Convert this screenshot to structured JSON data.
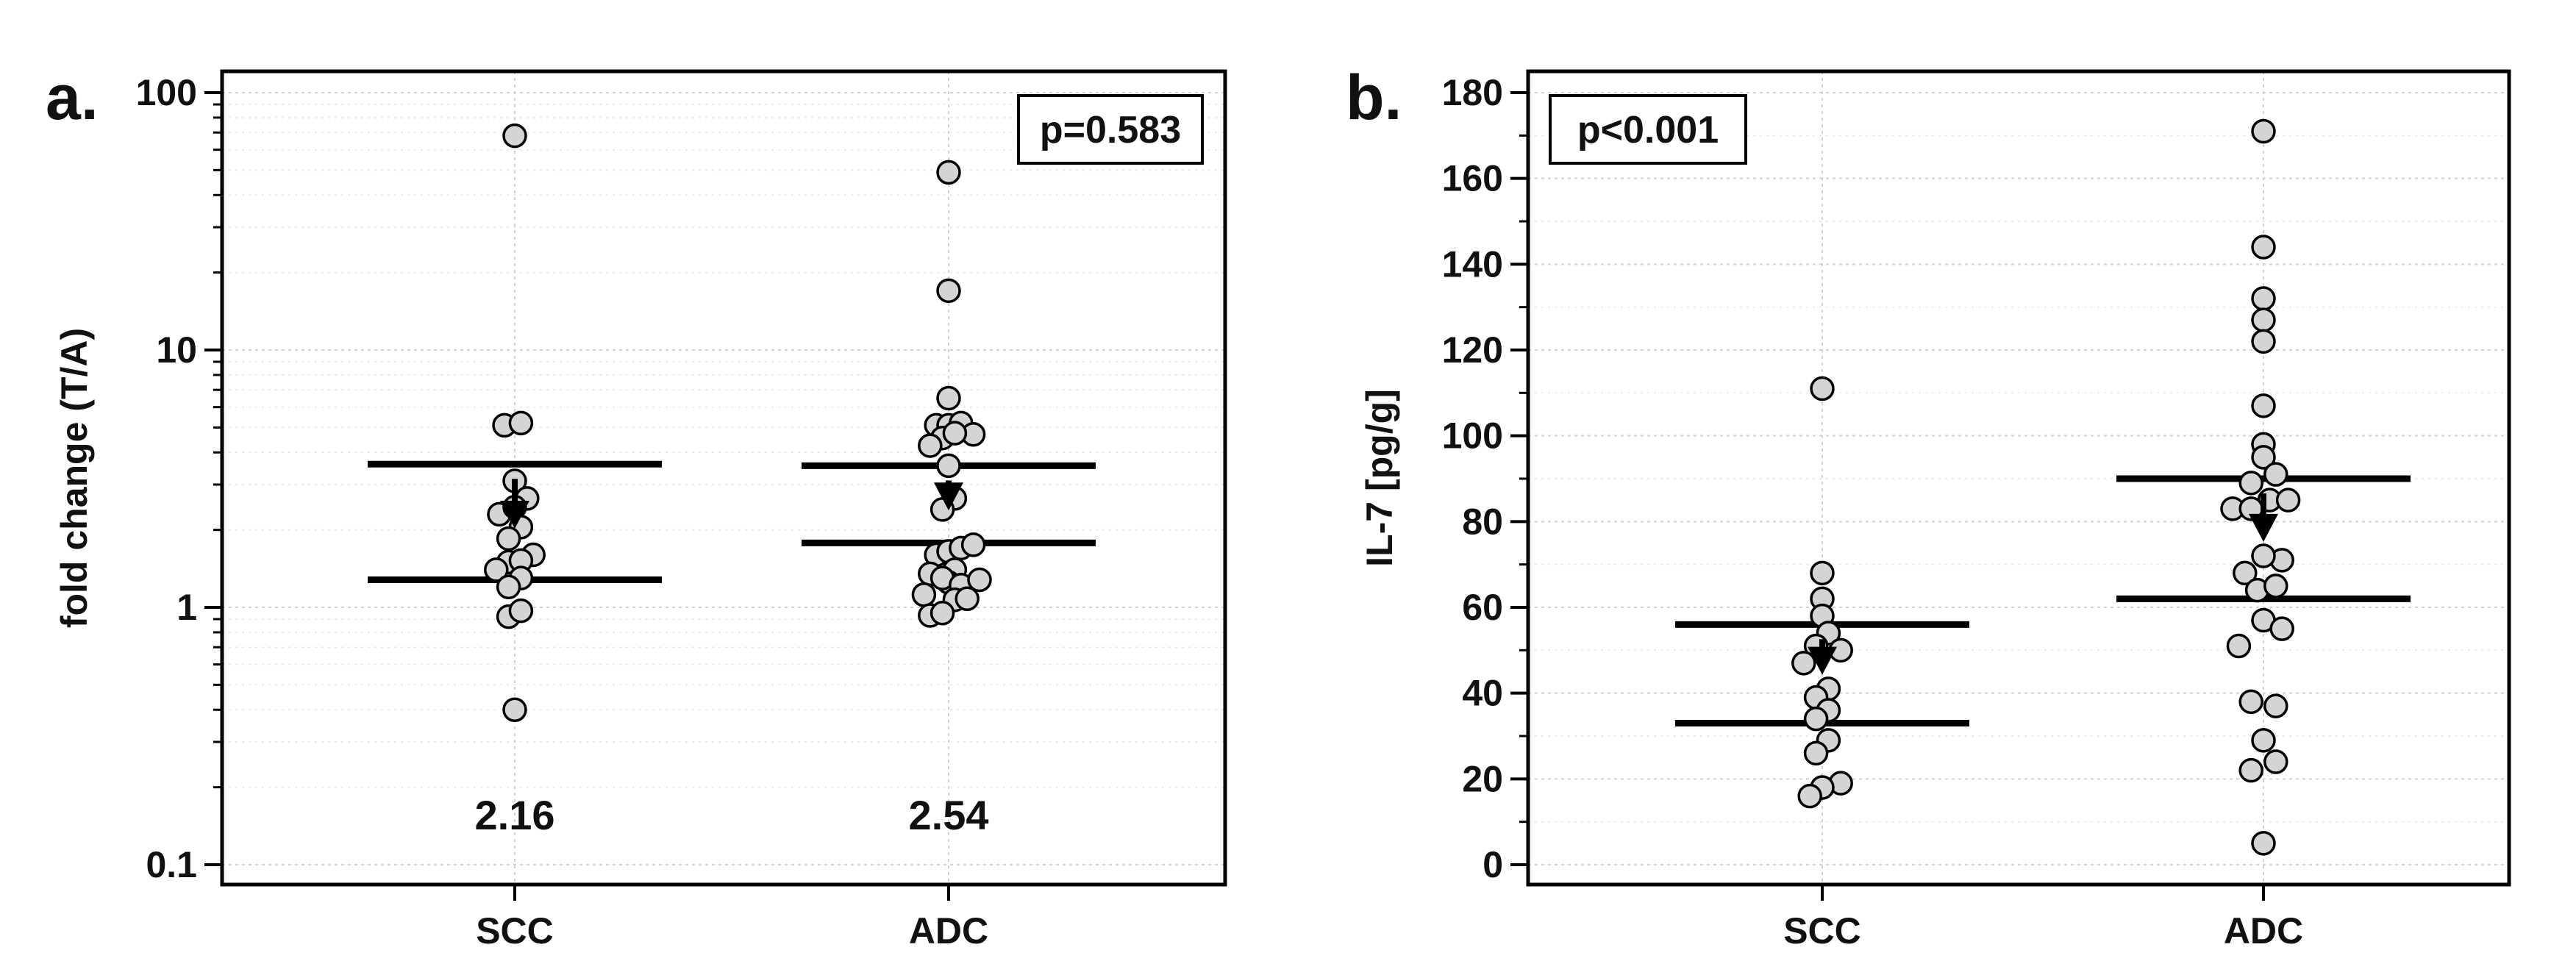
{
  "chart_data": [
    {
      "panel_label": "a.",
      "type": "scatter",
      "ylabel": "fold change (T/A)",
      "yscale": "log",
      "ylim": [
        0.08,
        120
      ],
      "yticks": [
        0.1,
        1,
        10,
        100
      ],
      "ytick_labels": [
        "0.1",
        "1",
        "10",
        "100"
      ],
      "categories": [
        "SCC",
        "ADC"
      ],
      "grid": true,
      "annotation": "p=0.583",
      "annotation_position": "top-right",
      "groups": [
        {
          "category": "SCC",
          "median_label": "2.16",
          "median": 2.16,
          "q1": 1.28,
          "q3": 3.6,
          "points": [
            {
              "dx": 0,
              "y": 68
            },
            {
              "dx": -0.1,
              "y": 5.1
            },
            {
              "dx": 0.06,
              "y": 5.2
            },
            {
              "dx": 0,
              "y": 3.1
            },
            {
              "dx": 0.12,
              "y": 2.65
            },
            {
              "dx": -0.15,
              "y": 2.3
            },
            {
              "dx": 0,
              "y": 2.45
            },
            {
              "dx": 0.06,
              "y": 2.05
            },
            {
              "dx": -0.06,
              "y": 1.85
            },
            {
              "dx": 0.18,
              "y": 1.6
            },
            {
              "dx": -0.06,
              "y": 1.5
            },
            {
              "dx": 0.06,
              "y": 1.52
            },
            {
              "dx": -0.18,
              "y": 1.4
            },
            {
              "dx": 0.06,
              "y": 1.3
            },
            {
              "dx": -0.06,
              "y": 1.2
            },
            {
              "dx": -0.06,
              "y": 0.92
            },
            {
              "dx": 0.06,
              "y": 0.97
            },
            {
              "dx": 0,
              "y": 0.4
            }
          ]
        },
        {
          "category": "ADC",
          "median_label": "2.54",
          "median": 2.54,
          "q1": 1.78,
          "q3": 3.55,
          "points": [
            {
              "dx": 0,
              "y": 49
            },
            {
              "dx": 0,
              "y": 17
            },
            {
              "dx": 0,
              "y": 6.5
            },
            {
              "dx": -0.12,
              "y": 5.1
            },
            {
              "dx": 0,
              "y": 5.1
            },
            {
              "dx": 0.12,
              "y": 5.2
            },
            {
              "dx": 0.24,
              "y": 4.7
            },
            {
              "dx": -0.06,
              "y": 4.55
            },
            {
              "dx": 0.06,
              "y": 4.75
            },
            {
              "dx": -0.18,
              "y": 4.25
            },
            {
              "dx": 0,
              "y": 3.55
            },
            {
              "dx": 0.06,
              "y": 2.65
            },
            {
              "dx": -0.06,
              "y": 2.4
            },
            {
              "dx": -0.12,
              "y": 1.6
            },
            {
              "dx": 0,
              "y": 1.65
            },
            {
              "dx": 0.12,
              "y": 1.7
            },
            {
              "dx": 0.24,
              "y": 1.75
            },
            {
              "dx": 0.06,
              "y": 1.4
            },
            {
              "dx": -0.18,
              "y": 1.35
            },
            {
              "dx": 0,
              "y": 1.25
            },
            {
              "dx": -0.06,
              "y": 1.3
            },
            {
              "dx": 0.12,
              "y": 1.22
            },
            {
              "dx": 0.3,
              "y": 1.28
            },
            {
              "dx": -0.24,
              "y": 1.12
            },
            {
              "dx": 0.06,
              "y": 1.07
            },
            {
              "dx": 0.18,
              "y": 1.08
            },
            {
              "dx": -0.18,
              "y": 0.93
            },
            {
              "dx": -0.06,
              "y": 0.95
            }
          ]
        }
      ]
    },
    {
      "panel_label": "b.",
      "type": "scatter",
      "ylabel": "IL-7 [pg/g]",
      "yscale": "linear",
      "ylim": [
        -4,
        184
      ],
      "yticks": [
        0,
        20,
        40,
        60,
        80,
        100,
        120,
        140,
        160,
        180
      ],
      "ytick_labels": [
        "0",
        "20",
        "40",
        "60",
        "80",
        "100",
        "120",
        "140",
        "160",
        "180"
      ],
      "categories": [
        "SCC",
        "ADC"
      ],
      "grid": true,
      "annotation": "p<0.001",
      "annotation_position": "top-left",
      "groups": [
        {
          "category": "SCC",
          "median": 46,
          "q1": 33,
          "q3": 56,
          "points": [
            {
              "dx": 0,
              "y": 111
            },
            {
              "dx": 0,
              "y": 68
            },
            {
              "dx": 0,
              "y": 62
            },
            {
              "dx": 0,
              "y": 58
            },
            {
              "dx": 0.06,
              "y": 54
            },
            {
              "dx": -0.06,
              "y": 51
            },
            {
              "dx": 0.18,
              "y": 50
            },
            {
              "dx": -0.18,
              "y": 47
            },
            {
              "dx": 0.06,
              "y": 41
            },
            {
              "dx": -0.06,
              "y": 39
            },
            {
              "dx": 0.06,
              "y": 36
            },
            {
              "dx": -0.06,
              "y": 34
            },
            {
              "dx": 0.06,
              "y": 29
            },
            {
              "dx": -0.06,
              "y": 26
            },
            {
              "dx": 0.18,
              "y": 19
            },
            {
              "dx": 0,
              "y": 18
            },
            {
              "dx": -0.12,
              "y": 16
            }
          ]
        },
        {
          "category": "ADC",
          "median": 77,
          "q1": 62,
          "q3": 90,
          "points": [
            {
              "dx": 0,
              "y": 171
            },
            {
              "dx": 0,
              "y": 144
            },
            {
              "dx": 0,
              "y": 132
            },
            {
              "dx": 0,
              "y": 127
            },
            {
              "dx": 0,
              "y": 122
            },
            {
              "dx": 0,
              "y": 107
            },
            {
              "dx": 0,
              "y": 98
            },
            {
              "dx": 0,
              "y": 95
            },
            {
              "dx": 0.12,
              "y": 91
            },
            {
              "dx": -0.12,
              "y": 89
            },
            {
              "dx": 0.06,
              "y": 85
            },
            {
              "dx": 0.24,
              "y": 85
            },
            {
              "dx": -0.3,
              "y": 83
            },
            {
              "dx": -0.12,
              "y": 83
            },
            {
              "dx": 0.18,
              "y": 71
            },
            {
              "dx": 0,
              "y": 72
            },
            {
              "dx": -0.18,
              "y": 68
            },
            {
              "dx": -0.06,
              "y": 64
            },
            {
              "dx": 0.12,
              "y": 65
            },
            {
              "dx": 0,
              "y": 57
            },
            {
              "dx": 0.18,
              "y": 55
            },
            {
              "dx": -0.24,
              "y": 51
            },
            {
              "dx": -0.12,
              "y": 38
            },
            {
              "dx": 0.12,
              "y": 37
            },
            {
              "dx": 0,
              "y": 29
            },
            {
              "dx": 0.12,
              "y": 24
            },
            {
              "dx": -0.12,
              "y": 22
            },
            {
              "dx": 0,
              "y": 5
            }
          ]
        }
      ]
    }
  ]
}
